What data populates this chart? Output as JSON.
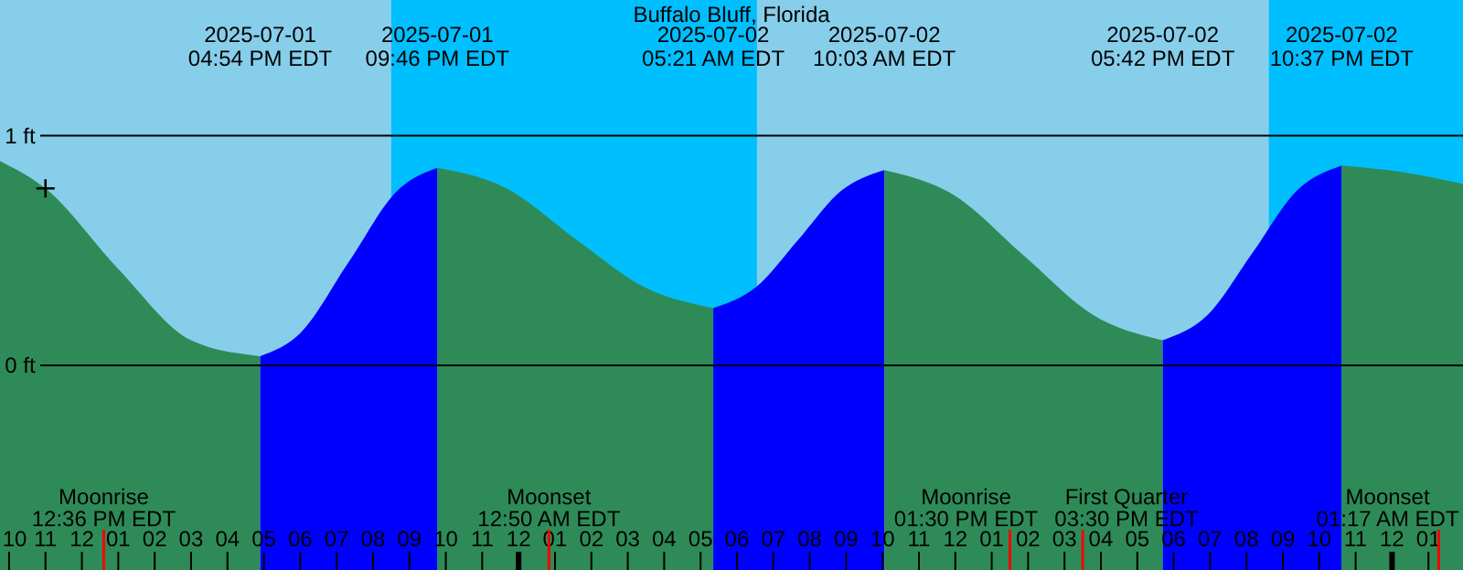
{
  "chart_data": {
    "type": "area",
    "title": "Buffalo Bluff, Florida",
    "series": [
      {
        "color": "#2e8b57",
        "x": [
          "2025-07-01T09:45",
          "2025-07-01T11:00",
          "2025-07-01T13:00",
          "2025-07-01T15:00",
          "2025-07-01T16:54"
        ],
        "values": [
          0.89,
          0.77,
          0.42,
          0.11,
          0.04
        ]
      },
      {
        "color": "#0000ff",
        "x": [
          "2025-07-01T16:54",
          "2025-07-01T18:00",
          "2025-07-01T19:20",
          "2025-07-01T20:40",
          "2025-07-01T21:46"
        ],
        "values": [
          0.04,
          0.14,
          0.45,
          0.76,
          0.86
        ]
      },
      {
        "color": "#2e8b57",
        "x": [
          "2025-07-01T21:46",
          "2025-07-01T23:40",
          "2025-07-02T01:34",
          "2025-07-02T03:28",
          "2025-07-02T05:21"
        ],
        "values": [
          0.86,
          0.77,
          0.55,
          0.34,
          0.25
        ]
      },
      {
        "color": "#0000ff",
        "x": [
          "2025-07-02T05:21",
          "2025-07-02T06:31",
          "2025-07-02T07:42",
          "2025-07-02T08:52",
          "2025-07-02T10:03"
        ],
        "values": [
          0.25,
          0.34,
          0.55,
          0.76,
          0.85
        ]
      },
      {
        "color": "#2e8b57",
        "x": [
          "2025-07-02T10:03",
          "2025-07-02T11:58",
          "2025-07-02T13:52",
          "2025-07-02T15:47",
          "2025-07-02T17:42"
        ],
        "values": [
          0.85,
          0.74,
          0.48,
          0.22,
          0.11
        ]
      },
      {
        "color": "#0000ff",
        "x": [
          "2025-07-02T17:42",
          "2025-07-02T18:56",
          "2025-07-02T20:10",
          "2025-07-02T21:23",
          "2025-07-02T22:37"
        ],
        "values": [
          0.11,
          0.22,
          0.49,
          0.76,
          0.87
        ]
      },
      {
        "color": "#2e8b57",
        "x": [
          "2025-07-02T22:37",
          "2025-07-03T00:20",
          "2025-07-03T01:57"
        ],
        "values": [
          0.87,
          0.84,
          0.79
        ]
      },
      {
        "type": "scatter",
        "marker": "cross",
        "color": "#000000",
        "x": [
          "2025-07-01T11:00"
        ],
        "values": [
          0.77
        ]
      }
    ],
    "xlim": [
      "2025-07-01T09:45",
      "2025-07-03T01:57"
    ],
    "xticks": [
      {
        "value": "2025-07-01T10:00",
        "label": "10"
      },
      {
        "value": "2025-07-01T11:00",
        "label": "11"
      },
      {
        "value": "2025-07-01T12:00",
        "label": "12"
      },
      {
        "value": "2025-07-01T13:00",
        "label": "01"
      },
      {
        "value": "2025-07-01T14:00",
        "label": "02"
      },
      {
        "value": "2025-07-01T15:00",
        "label": "03"
      },
      {
        "value": "2025-07-01T16:00",
        "label": "04"
      },
      {
        "value": "2025-07-01T17:00",
        "label": "05"
      },
      {
        "value": "2025-07-01T18:00",
        "label": "06"
      },
      {
        "value": "2025-07-01T19:00",
        "label": "07"
      },
      {
        "value": "2025-07-01T20:00",
        "label": "08"
      },
      {
        "value": "2025-07-01T21:00",
        "label": "09"
      },
      {
        "value": "2025-07-01T22:00",
        "label": "10"
      },
      {
        "value": "2025-07-01T23:00",
        "label": "11"
      },
      {
        "value": "2025-07-02T00:00",
        "label": "12"
      },
      {
        "value": "2025-07-02T01:00",
        "label": "01"
      },
      {
        "value": "2025-07-02T02:00",
        "label": "02"
      },
      {
        "value": "2025-07-02T03:00",
        "label": "03"
      },
      {
        "value": "2025-07-02T04:00",
        "label": "04"
      },
      {
        "value": "2025-07-02T05:00",
        "label": "05"
      },
      {
        "value": "2025-07-02T06:00",
        "label": "06"
      },
      {
        "value": "2025-07-02T07:00",
        "label": "07"
      },
      {
        "value": "2025-07-02T08:00",
        "label": "08"
      },
      {
        "value": "2025-07-02T09:00",
        "label": "09"
      },
      {
        "value": "2025-07-02T10:00",
        "label": "10"
      },
      {
        "value": "2025-07-02T11:00",
        "label": "11"
      },
      {
        "value": "2025-07-02T12:00",
        "label": "12"
      },
      {
        "value": "2025-07-02T13:00",
        "label": "01"
      },
      {
        "value": "2025-07-02T14:00",
        "label": "02"
      },
      {
        "value": "2025-07-02T15:00",
        "label": "03"
      },
      {
        "value": "2025-07-02T16:00",
        "label": "04"
      },
      {
        "value": "2025-07-02T17:00",
        "label": "05"
      },
      {
        "value": "2025-07-02T18:00",
        "label": "06"
      },
      {
        "value": "2025-07-02T19:00",
        "label": "07"
      },
      {
        "value": "2025-07-02T20:00",
        "label": "08"
      },
      {
        "value": "2025-07-02T21:00",
        "label": "09"
      },
      {
        "value": "2025-07-02T22:00",
        "label": "10"
      },
      {
        "value": "2025-07-02T23:00",
        "label": "11"
      },
      {
        "value": "2025-07-03T00:00",
        "label": "12"
      },
      {
        "value": "2025-07-03T01:00",
        "label": "01"
      }
    ],
    "ylim": [
      -0.89,
      1.59
    ],
    "yticks": [
      {
        "value": 0,
        "label": "0 ft"
      },
      {
        "value": 1,
        "label": "1 ft"
      }
    ],
    "grid": "y",
    "bands": [
      {
        "axis": "x",
        "from": "2025-07-01T20:30",
        "to": "2025-07-02T06:33",
        "color": "#00bfff"
      },
      {
        "axis": "x",
        "from": "2025-07-02T20:37",
        "to": "2025-07-03T01:57",
        "color": "#00bfff"
      },
      {
        "axis": "x",
        "from": "2025-07-01T09:45",
        "to": "2025-07-01T16:54",
        "color": "#2e8b57"
      },
      {
        "axis": "x",
        "from": "2025-07-01T16:54",
        "to": "2025-07-01T21:46",
        "color": "#0000ff"
      },
      {
        "axis": "x",
        "from": "2025-07-01T21:46",
        "to": "2025-07-02T05:21",
        "color": "#2e8b57"
      },
      {
        "axis": "x",
        "from": "2025-07-02T05:21",
        "to": "2025-07-02T10:03",
        "color": "#0000ff"
      },
      {
        "axis": "x",
        "from": "2025-07-02T10:03",
        "to": "2025-07-02T17:42",
        "color": "#2e8b57"
      },
      {
        "axis": "x",
        "from": "2025-07-02T17:42",
        "to": "2025-07-02T22:37",
        "color": "#0000ff"
      },
      {
        "axis": "x",
        "from": "2025-07-02T22:37",
        "to": "2025-07-03T01:57",
        "color": "#2e8b57"
      }
    ],
    "ref_lines": [
      {
        "axis": "x",
        "value": "2025-07-01T12:36",
        "label": "Moonrise\n12:36 PM EDT",
        "color": "#ff0000"
      },
      {
        "axis": "x",
        "value": "2025-07-02T00:50",
        "label": "Moonset\n12:50 AM EDT",
        "color": "#ff0000"
      },
      {
        "axis": "x",
        "value": "2025-07-02T13:30",
        "label": "Moonrise\n01:30 PM EDT",
        "color": "#ff0000"
      },
      {
        "axis": "x",
        "value": "2025-07-02T15:30",
        "label": "First Quarter\n03:30 PM EDT",
        "color": "#ff0000"
      },
      {
        "axis": "x",
        "value": "2025-07-03T01:17",
        "label": "Moonset\n01:17 AM EDT",
        "color": "#ff0000"
      }
    ],
    "annotations": [
      "2025-07-01\n04:54 PM EDT",
      "2025-07-01\n09:46 PM EDT",
      "2025-07-02\n05:21 AM EDT",
      "2025-07-02\n10:03 AM EDT",
      "2025-07-02\n05:42 PM EDT",
      "2025-07-02\n10:37 PM EDT"
    ]
  }
}
